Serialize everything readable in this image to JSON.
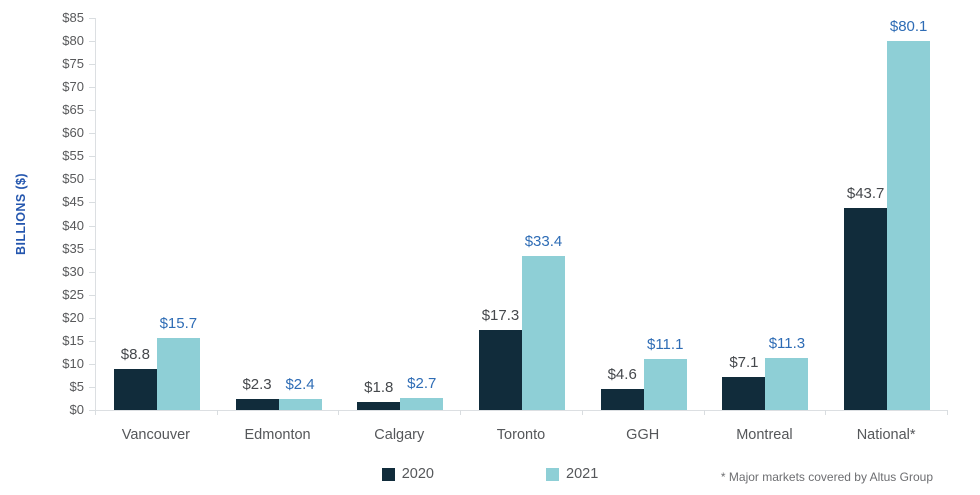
{
  "chart_data": {
    "type": "bar",
    "title": "",
    "categories": [
      "Vancouver",
      "Edmonton",
      "Calgary",
      "Toronto",
      "GGH",
      "Montreal",
      "National*"
    ],
    "series": [
      {
        "name": "2020",
        "color": "#112c3b",
        "label_color": "#45484c",
        "values": [
          8.8,
          2.3,
          1.8,
          17.3,
          4.6,
          7.1,
          43.7
        ]
      },
      {
        "name": "2021",
        "color": "#8ecfd6",
        "label_color": "#2e6cb5",
        "values": [
          15.7,
          2.4,
          2.7,
          33.4,
          11.1,
          11.3,
          80.1
        ]
      }
    ],
    "value_prefix": "$",
    "xlabel": "",
    "ylabel": "BILLIONS ($)",
    "ylim": [
      0,
      85
    ],
    "tick_step": 5,
    "tick_prefix": "$",
    "grid": false,
    "legend_position": "bottom",
    "footnote": "* Major markets covered by Altus Group",
    "colors": {
      "axis_line": "#dcdfe2",
      "tick_dash": "#d9dde0",
      "tick_label": "#58595b",
      "category_label": "#55575a",
      "y_title": "#2456ae",
      "legend_label": "#55575a",
      "footnote": "#6d6e71",
      "background": "#ffffff"
    }
  }
}
